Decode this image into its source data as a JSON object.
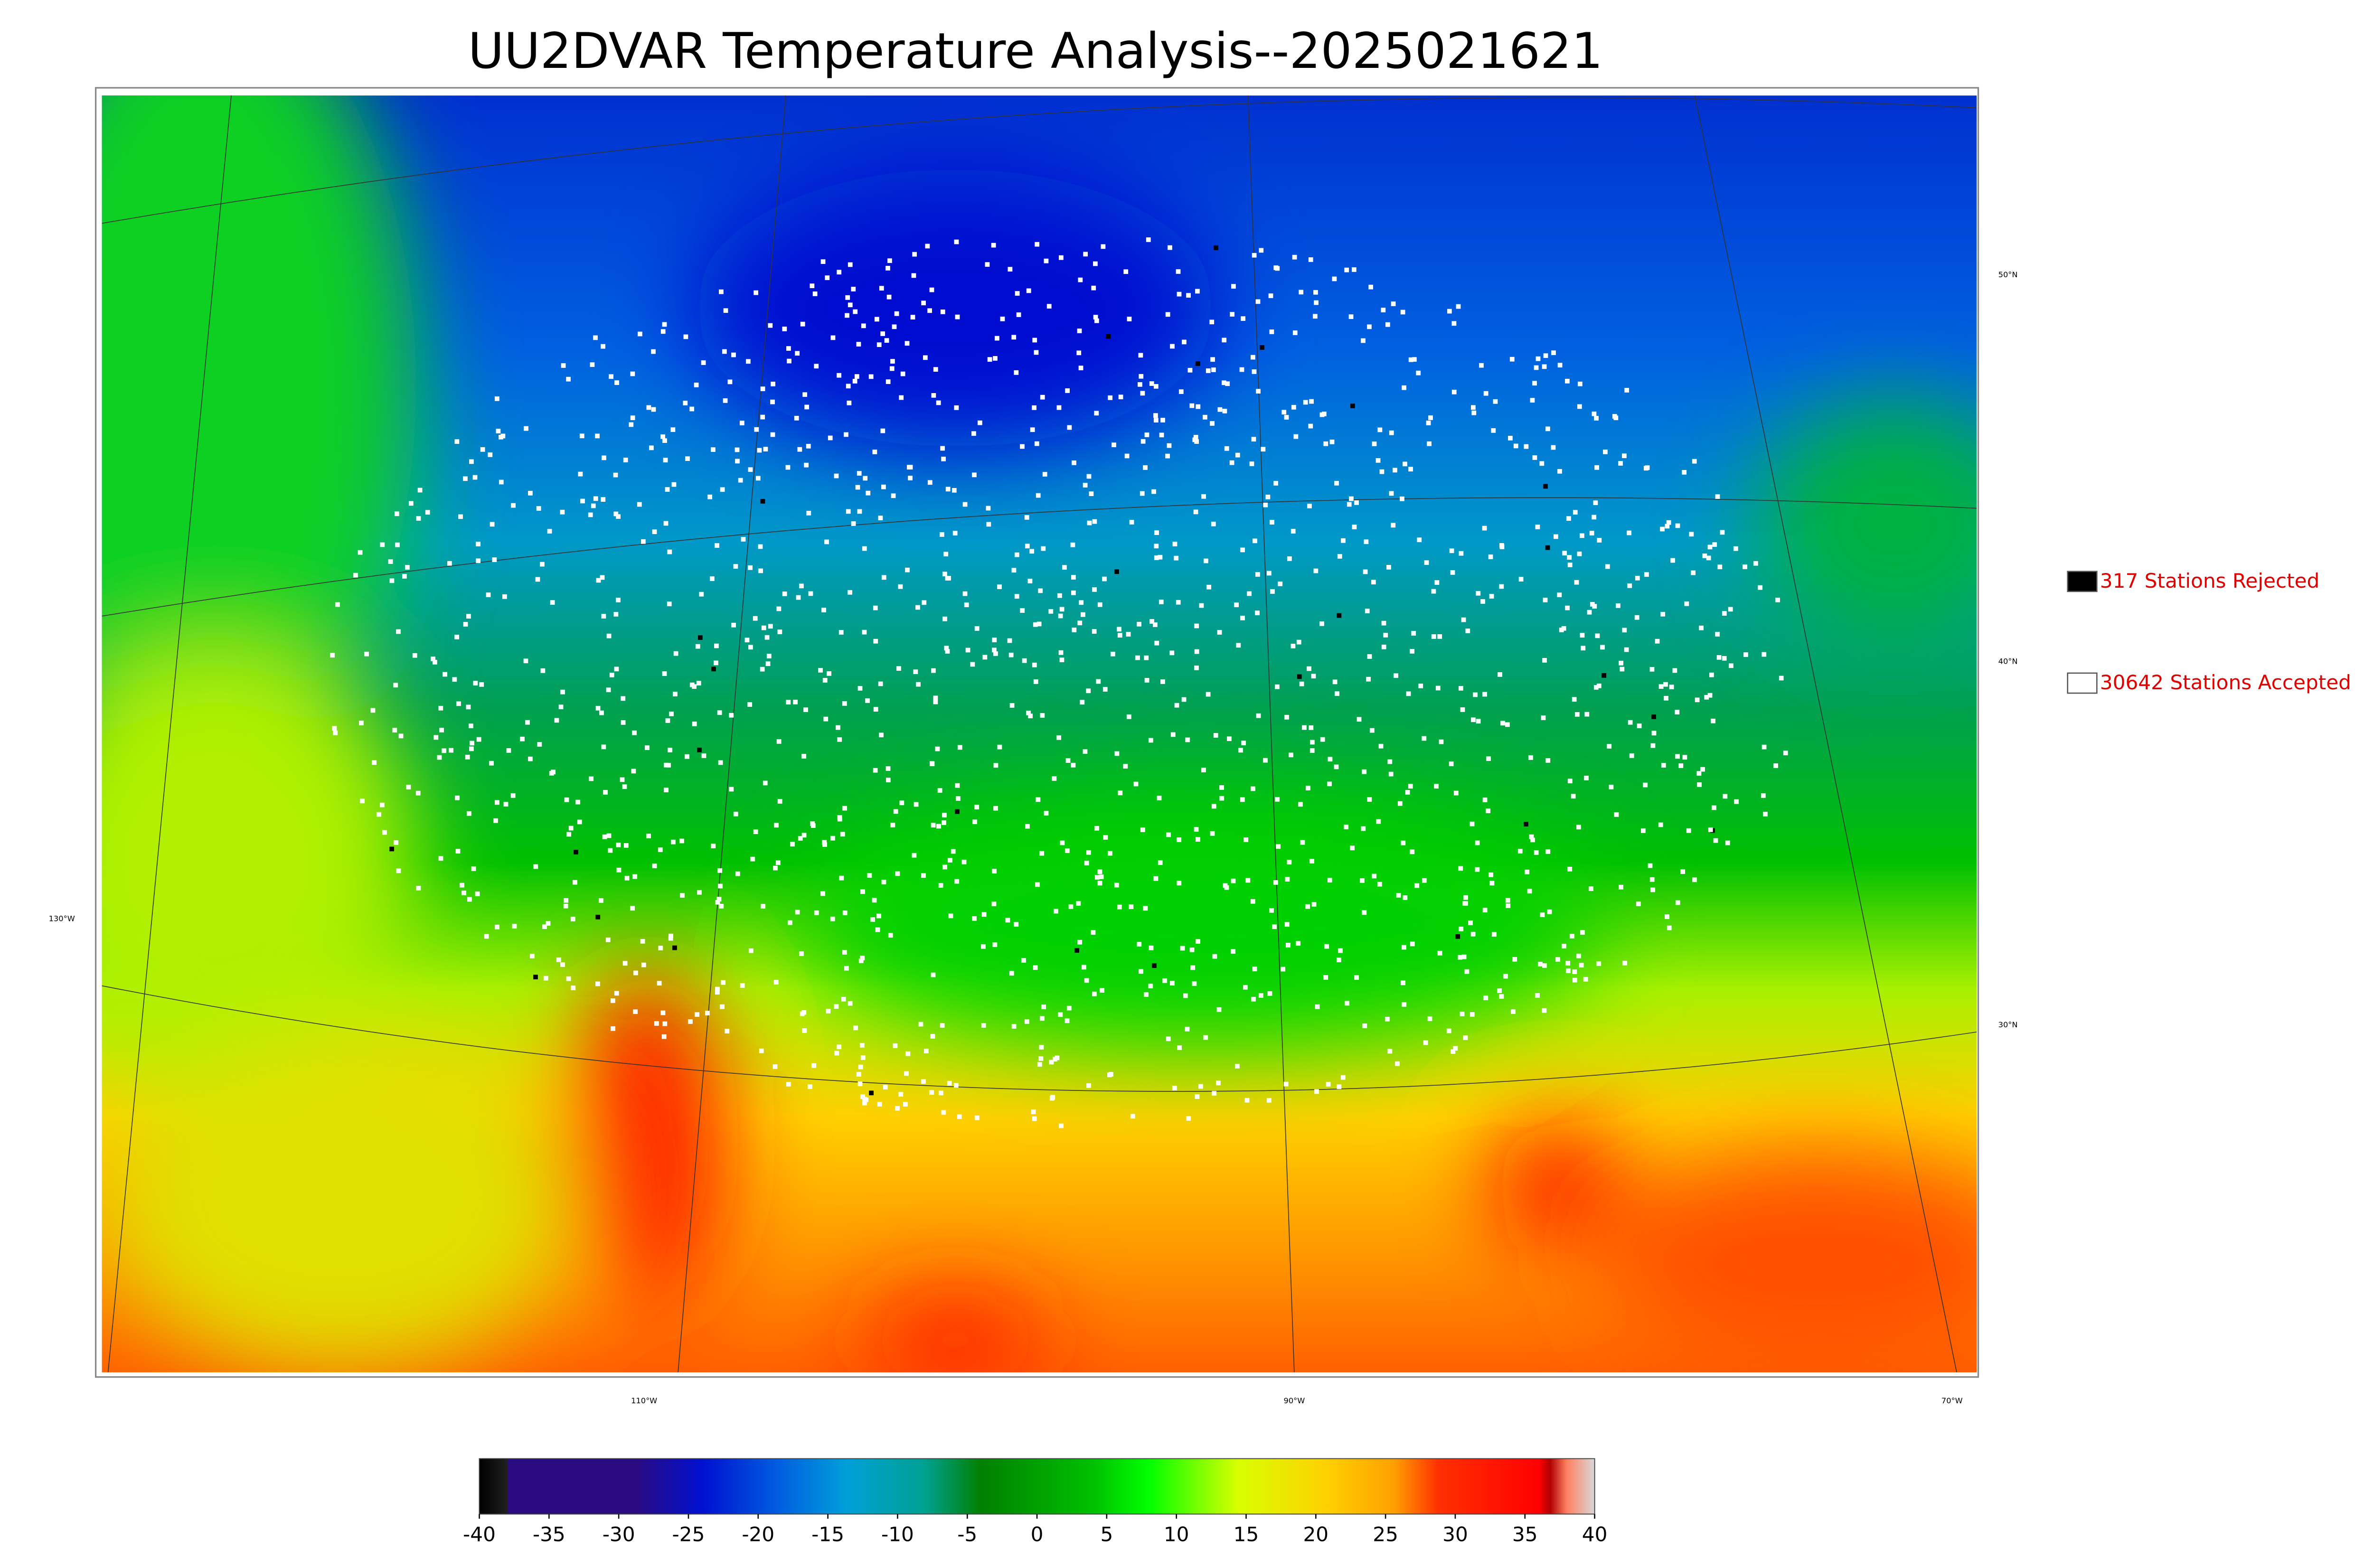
{
  "title": "UU2DVAR Temperature Analysis--2025021621",
  "legend": [
    {
      "label": "317 Stations Rejected",
      "color": "#000000"
    },
    {
      "label": "30642 Stations Accepted",
      "color": "#ffffff"
    }
  ],
  "colorbar": {
    "lim": [
      -40,
      40
    ],
    "ticks": [
      -40,
      -35,
      -30,
      -25,
      -20,
      -15,
      -10,
      -5,
      0,
      5,
      10,
      15,
      20,
      25,
      30,
      35,
      40
    ]
  },
  "lat_labels": [
    "50°N",
    "40°N",
    "30°N"
  ],
  "lon_labels": [
    "130°W",
    "110°W",
    "90°W",
    "70°W"
  ]
}
